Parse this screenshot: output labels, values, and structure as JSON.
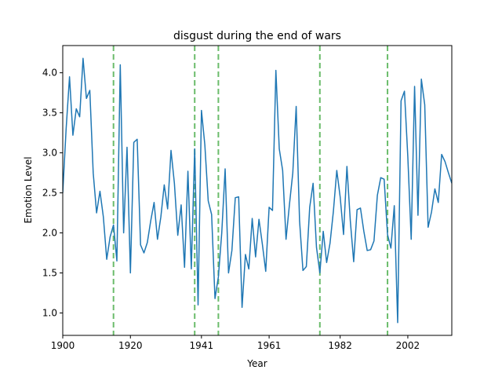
{
  "chart_data": {
    "type": "line",
    "title": "disgust during the end of wars",
    "xlabel": "Year",
    "ylabel": "Emotion Level",
    "xlim": [
      1900,
      2015
    ],
    "ylim": [
      0.72,
      4.34
    ],
    "grid": false,
    "legend": "none",
    "x_ticks": [
      1900,
      1920,
      1941,
      1961,
      1982,
      2002
    ],
    "y_ticks": [
      1.0,
      1.5,
      2.0,
      2.5,
      3.0,
      3.5,
      4.0
    ],
    "colors": {
      "line": "#1f77b4",
      "war_lines": "#2ca02c"
    },
    "war_end_years": [
      1915,
      1939,
      1946,
      1976,
      1996
    ],
    "series": [
      {
        "x": [
          1900,
          1901,
          1902,
          1903,
          1904,
          1905,
          1906,
          1907,
          1908,
          1909,
          1910,
          1911,
          1912,
          1913,
          1914,
          1915,
          1916,
          1917,
          1918,
          1919,
          1920,
          1921,
          1922,
          1923,
          1924,
          1925,
          1926,
          1927,
          1928,
          1929,
          1930,
          1931,
          1932,
          1933,
          1934,
          1935,
          1936,
          1937,
          1938,
          1939,
          1940,
          1941,
          1942,
          1943,
          1944,
          1945,
          1946,
          1947,
          1948,
          1949,
          1950,
          1951,
          1952,
          1953,
          1954,
          1955,
          1956,
          1957,
          1958,
          1959,
          1960,
          1961,
          1962,
          1963,
          1964,
          1965,
          1966,
          1967,
          1968,
          1969,
          1970,
          1971,
          1972,
          1973,
          1974,
          1975,
          1976,
          1977,
          1978,
          1979,
          1980,
          1981,
          1982,
          1983,
          1984,
          1985,
          1986,
          1987,
          1988,
          1989,
          1990,
          1991,
          1992,
          1993,
          1994,
          1995,
          1996,
          1997,
          1998,
          1999,
          2000,
          2001,
          2002,
          2003,
          2004,
          2005,
          2006,
          2007,
          2008,
          2009,
          2010,
          2011,
          2012,
          2013,
          2014,
          2015
        ],
        "values": [
          2.5,
          3.3,
          3.95,
          3.22,
          3.55,
          3.45,
          4.18,
          3.68,
          3.78,
          2.75,
          2.25,
          2.52,
          2.2,
          1.67,
          1.95,
          2.1,
          1.65,
          4.1,
          2.0,
          3.07,
          1.5,
          3.13,
          3.17,
          1.85,
          1.75,
          1.88,
          2.15,
          2.38,
          1.92,
          2.2,
          2.6,
          2.3,
          3.03,
          2.62,
          1.97,
          2.35,
          1.57,
          2.77,
          1.55,
          3.05,
          1.1,
          3.53,
          3.1,
          2.4,
          2.23,
          1.18,
          1.45,
          2.0,
          2.8,
          1.5,
          1.78,
          2.44,
          2.45,
          1.07,
          1.73,
          1.55,
          2.18,
          1.7,
          2.17,
          1.86,
          1.52,
          2.32,
          2.28,
          4.03,
          3.05,
          2.78,
          1.92,
          2.35,
          2.75,
          3.58,
          2.15,
          1.53,
          1.58,
          2.32,
          2.62,
          1.82,
          1.5,
          2.02,
          1.63,
          1.87,
          2.27,
          2.78,
          2.45,
          1.98,
          2.83,
          2.15,
          1.64,
          2.29,
          2.31,
          2.02,
          1.78,
          1.79,
          1.9,
          2.47,
          2.69,
          2.67,
          1.98,
          1.81,
          2.34,
          0.88,
          3.65,
          3.77,
          2.95,
          1.92,
          3.83,
          2.22,
          3.92,
          3.6,
          2.07,
          2.26,
          2.55,
          2.38,
          2.98,
          2.89,
          2.75,
          2.62
        ]
      }
    ]
  }
}
